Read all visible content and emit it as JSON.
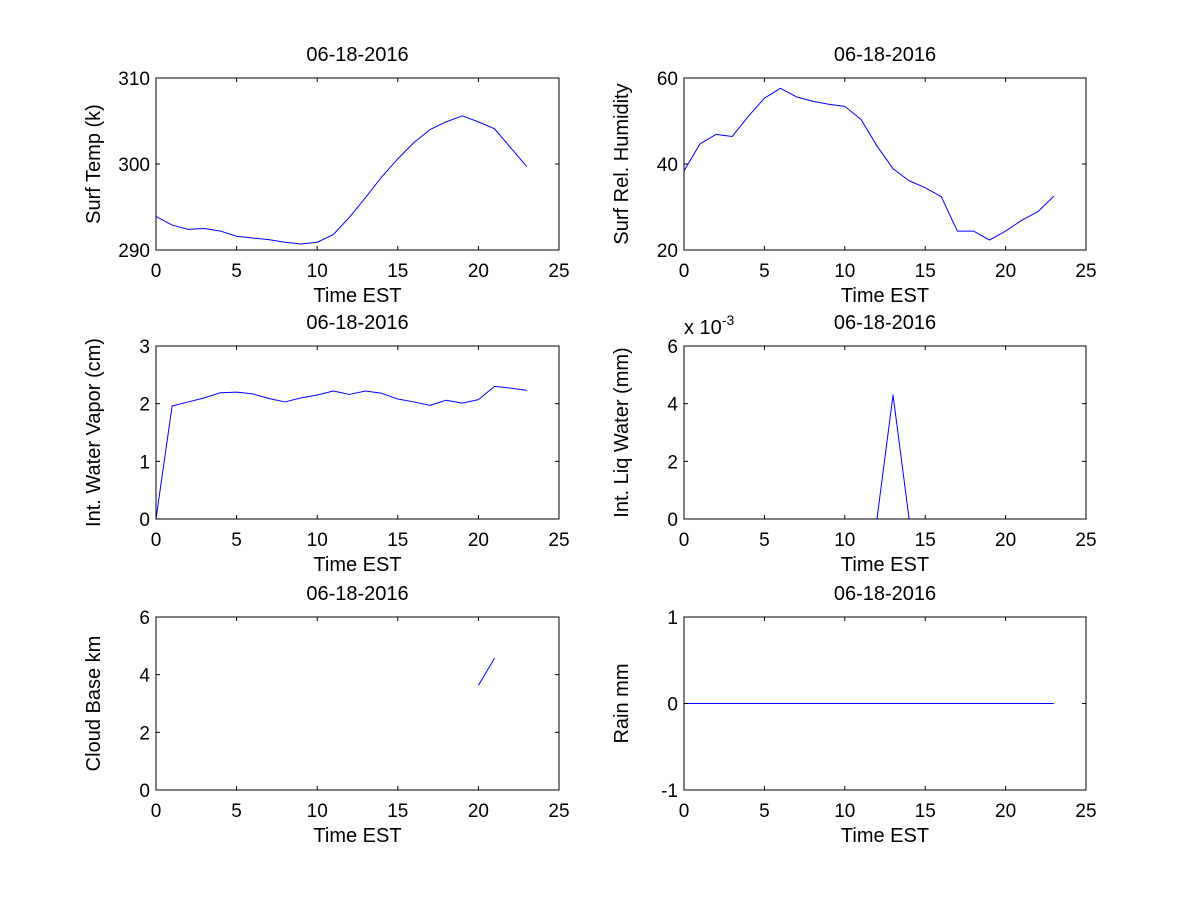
{
  "figure": {
    "background": "#ffffff",
    "line_color": "#0000ff",
    "axis_color": "#000000"
  },
  "chart_data": [
    {
      "type": "line",
      "title": "06-18-2016",
      "xlabel": "Time EST",
      "ylabel": "Surf Temp (k)",
      "xlim": [
        0,
        25
      ],
      "ylim": [
        290,
        310
      ],
      "xticks": [
        0,
        5,
        10,
        15,
        20,
        25
      ],
      "xtick_labels": [
        "0",
        "5",
        "10",
        "15",
        "20",
        "25"
      ],
      "yticks": [
        290,
        300,
        310
      ],
      "ytick_labels": [
        "290",
        "300",
        "310"
      ],
      "exponent_label": "",
      "series": [
        {
          "name": "Surf Temp",
          "segments": [
            {
              "x": [
                0,
                1,
                2,
                3,
                4,
                5,
                6,
                7,
                8,
                9,
                10,
                11,
                12,
                13,
                14,
                15,
                16,
                17,
                18,
                19,
                20,
                21,
                22,
                23
              ],
              "y": [
                293.9,
                292.9,
                292.4,
                292.5,
                292.2,
                291.6,
                291.4,
                291.2,
                290.9,
                290.7,
                290.9,
                291.8,
                293.8,
                296.1,
                298.5,
                300.6,
                302.5,
                304.0,
                304.9,
                305.6,
                304.9,
                304.1,
                301.9,
                299.7
              ]
            }
          ]
        }
      ]
    },
    {
      "type": "line",
      "title": "06-18-2016",
      "xlabel": "Time EST",
      "ylabel": "Surf Rel. Humidity",
      "xlim": [
        0,
        25
      ],
      "ylim": [
        20,
        60
      ],
      "xticks": [
        0,
        5,
        10,
        15,
        20,
        25
      ],
      "xtick_labels": [
        "0",
        "5",
        "10",
        "15",
        "20",
        "25"
      ],
      "yticks": [
        20,
        40,
        60
      ],
      "ytick_labels": [
        "20",
        "40",
        "60"
      ],
      "exponent_label": "",
      "series": [
        {
          "name": "Surf Rel. Humidity",
          "segments": [
            {
              "x": [
                0,
                1,
                2,
                3,
                4,
                5,
                6,
                7,
                8,
                9,
                10,
                11,
                12,
                13,
                14,
                15,
                16,
                17,
                18,
                19,
                20,
                21,
                22,
                23
              ],
              "y": [
                38.4,
                44.7,
                46.9,
                46.4,
                51.1,
                55.3,
                57.6,
                55.6,
                54.6,
                53.9,
                53.4,
                50.4,
                44.2,
                38.9,
                36.1,
                34.5,
                32.4,
                24.4,
                24.4,
                22.3,
                24.4,
                26.9,
                28.9,
                32.5
              ]
            }
          ]
        }
      ]
    },
    {
      "type": "line",
      "title": "06-18-2016",
      "xlabel": "Time EST",
      "ylabel": "Int. Water Vapor (cm)",
      "xlim": [
        0,
        25
      ],
      "ylim": [
        0,
        3
      ],
      "xticks": [
        0,
        5,
        10,
        15,
        20,
        25
      ],
      "xtick_labels": [
        "0",
        "5",
        "10",
        "15",
        "20",
        "25"
      ],
      "yticks": [
        0,
        1,
        2,
        3
      ],
      "ytick_labels": [
        "0",
        "1",
        "2",
        "3"
      ],
      "exponent_label": "",
      "series": [
        {
          "name": "Int. Water Vapor",
          "segments": [
            {
              "x": [
                0,
                1,
                2,
                3,
                4,
                5,
                6,
                7,
                8,
                9,
                10,
                11,
                12,
                13,
                14,
                15,
                16,
                17,
                18,
                19,
                20,
                21,
                22,
                23
              ],
              "y": [
                0.0,
                1.96,
                2.03,
                2.1,
                2.19,
                2.2,
                2.17,
                2.09,
                2.03,
                2.1,
                2.15,
                2.22,
                2.16,
                2.22,
                2.18,
                2.08,
                2.03,
                1.97,
                2.06,
                2.01,
                2.07,
                2.3,
                2.27,
                2.23
              ]
            }
          ]
        }
      ]
    },
    {
      "type": "line",
      "title": "06-18-2016",
      "xlabel": "Time EST",
      "ylabel": "Int. Liq Water (mm)",
      "xlim": [
        0,
        25
      ],
      "ylim": [
        0,
        6
      ],
      "xticks": [
        0,
        5,
        10,
        15,
        20,
        25
      ],
      "xtick_labels": [
        "0",
        "5",
        "10",
        "15",
        "20",
        "25"
      ],
      "yticks": [
        0,
        2,
        4,
        6
      ],
      "ytick_labels": [
        "0",
        "2",
        "4",
        "6"
      ],
      "exponent_label": "x 10",
      "exponent_power": "-3",
      "series": [
        {
          "name": "Int. Liq Water",
          "segments": [
            {
              "x": [
                0,
                1,
                2,
                3,
                4,
                5,
                6,
                7,
                8,
                9,
                10,
                11,
                12,
                13,
                14,
                15,
                16,
                17,
                18,
                19,
                20,
                21,
                22,
                23
              ],
              "y": [
                0,
                0,
                0,
                0,
                0,
                0,
                0,
                0,
                0,
                0,
                0,
                0,
                0,
                4.3,
                0,
                0,
                0,
                0,
                0,
                0,
                0,
                0,
                0,
                0
              ]
            }
          ]
        }
      ]
    },
    {
      "type": "line",
      "title": "06-18-2016",
      "xlabel": "Time EST",
      "ylabel": "Cloud Base km",
      "xlim": [
        0,
        25
      ],
      "ylim": [
        0,
        6
      ],
      "xticks": [
        0,
        5,
        10,
        15,
        20,
        25
      ],
      "xtick_labels": [
        "0",
        "5",
        "10",
        "15",
        "20",
        "25"
      ],
      "yticks": [
        0,
        2,
        4,
        6
      ],
      "ytick_labels": [
        "0",
        "2",
        "4",
        "6"
      ],
      "exponent_label": "",
      "series": [
        {
          "name": "Cloud Base",
          "segments": [
            {
              "x": [
                20,
                21
              ],
              "y": [
                3.63,
                4.57
              ]
            }
          ]
        }
      ]
    },
    {
      "type": "line",
      "title": "06-18-2016",
      "xlabel": "Time EST",
      "ylabel": "Rain mm",
      "xlim": [
        0,
        25
      ],
      "ylim": [
        -1,
        1
      ],
      "xticks": [
        0,
        5,
        10,
        15,
        20,
        25
      ],
      "xtick_labels": [
        "0",
        "5",
        "10",
        "15",
        "20",
        "25"
      ],
      "yticks": [
        -1,
        0,
        1
      ],
      "ytick_labels": [
        "-1",
        "0",
        "1"
      ],
      "exponent_label": "",
      "series": [
        {
          "name": "Rain",
          "segments": [
            {
              "x": [
                0,
                1,
                2,
                3,
                4,
                5,
                6,
                7,
                8,
                9,
                10,
                11,
                12,
                13,
                14,
                15,
                16,
                17,
                18,
                19,
                20,
                21,
                22,
                23
              ],
              "y": [
                0,
                0,
                0,
                0,
                0,
                0,
                0,
                0,
                0,
                0,
                0,
                0,
                0,
                0,
                0,
                0,
                0,
                0,
                0,
                0,
                0,
                0,
                0,
                0
              ]
            }
          ]
        }
      ]
    }
  ]
}
